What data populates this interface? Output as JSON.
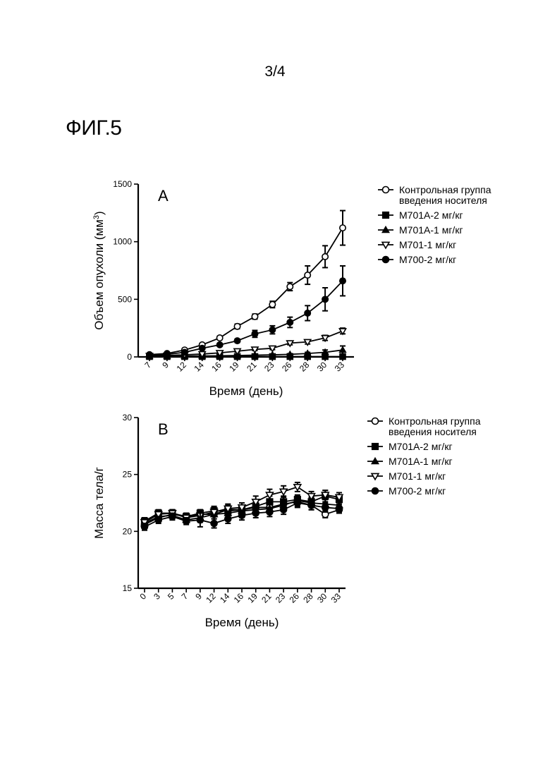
{
  "page_number": "3/4",
  "figure_label": "ФИГ.5",
  "chart_data": [
    {
      "type": "line",
      "panel_label": "A",
      "xlabel": "Время (день)",
      "ylabel": "Объем опухоли (мм",
      "ylabel_sup": "3",
      "ylabel_tail": ")",
      "x": [
        7,
        9,
        12,
        14,
        16,
        19,
        21,
        23,
        26,
        28,
        30,
        33
      ],
      "x_tick_labels": [
        "7",
        "9",
        "12",
        "14",
        "16",
        "19",
        "21",
        "23",
        "26",
        "28",
        "30",
        "33"
      ],
      "ylim": [
        0,
        1500
      ],
      "y_ticks": [
        0,
        500,
        1000,
        1500
      ],
      "y_tick_labels": [
        "0",
        "500",
        "1000",
        "1500"
      ],
      "legend_position": "right",
      "series": [
        {
          "name": "Контрольная группа",
          "name_line2": "введения носителя",
          "marker": "open-circle",
          "values": [
            20,
            30,
            60,
            105,
            165,
            265,
            350,
            455,
            610,
            710,
            870,
            1120
          ],
          "errors": [
            5,
            8,
            10,
            12,
            15,
            20,
            22,
            28,
            35,
            80,
            95,
            150
          ]
        },
        {
          "name": "M701A-2 мг/кг",
          "name_line2": "",
          "marker": "filled-square",
          "values": [
            3,
            3,
            3,
            3,
            3,
            3,
            3,
            3,
            3,
            3,
            3,
            3
          ],
          "errors": [
            1,
            1,
            1,
            1,
            1,
            1,
            1,
            1,
            1,
            1,
            1,
            1
          ]
        },
        {
          "name": "M701A-1 мг/кг",
          "name_line2": "",
          "marker": "filled-triangle",
          "values": [
            5,
            6,
            7,
            8,
            10,
            12,
            15,
            18,
            22,
            30,
            40,
            60
          ],
          "errors": [
            1,
            2,
            2,
            2,
            3,
            3,
            4,
            5,
            6,
            10,
            20,
            35
          ]
        },
        {
          "name": "M701-1 мг/кг",
          "name_line2": "",
          "marker": "open-triangle-down",
          "values": [
            10,
            12,
            18,
            25,
            35,
            50,
            65,
            75,
            120,
            130,
            165,
            225
          ],
          "errors": [
            2,
            3,
            4,
            5,
            6,
            8,
            10,
            12,
            15,
            18,
            22,
            25
          ]
        },
        {
          "name": "M700-2 мг/кг",
          "name_line2": "",
          "marker": "filled-circle",
          "values": [
            15,
            22,
            40,
            75,
            105,
            140,
            200,
            235,
            300,
            380,
            500,
            660
          ],
          "errors": [
            4,
            5,
            8,
            10,
            12,
            15,
            30,
            35,
            45,
            65,
            100,
            130
          ]
        }
      ]
    },
    {
      "type": "line",
      "panel_label": "B",
      "xlabel": "Время (день)",
      "ylabel": "Масса тела/г",
      "x": [
        0,
        3,
        5,
        7,
        9,
        12,
        14,
        16,
        19,
        21,
        23,
        26,
        28,
        30,
        33
      ],
      "x_tick_labels": [
        "0",
        "3",
        "5",
        "7",
        "9",
        "12",
        "14",
        "16",
        "19",
        "21",
        "23",
        "26",
        "28",
        "30",
        "33"
      ],
      "ylim": [
        15,
        30
      ],
      "y_ticks": [
        15,
        20,
        25,
        30
      ],
      "y_tick_labels": [
        "15",
        "20",
        "25",
        "30"
      ],
      "legend_position": "right",
      "series": [
        {
          "name": "Контрольная группа",
          "name_line2": "введения носителя",
          "marker": "open-circle",
          "values": [
            20.6,
            21.2,
            21.5,
            21.3,
            21.5,
            21.5,
            21.9,
            21.9,
            22.1,
            22.1,
            22.4,
            22.6,
            22.3,
            21.5,
            21.9
          ],
          "errors": [
            0.3,
            0.3,
            0.3,
            0.3,
            0.4,
            0.4,
            0.4,
            0.4,
            0.4,
            0.4,
            0.4,
            0.4,
            0.4,
            0.3,
            0.3
          ]
        },
        {
          "name": "M701A-2 мг/кг",
          "name_line2": "",
          "marker": "filled-square",
          "values": [
            20.9,
            21.6,
            21.6,
            21.3,
            21.6,
            21.8,
            21.8,
            21.9,
            22.2,
            22.6,
            22.6,
            22.8,
            22.6,
            23.1,
            22.8
          ],
          "errors": [
            0.3,
            0.3,
            0.3,
            0.3,
            0.3,
            0.4,
            0.4,
            0.4,
            0.4,
            0.5,
            0.5,
            0.4,
            0.4,
            0.5,
            0.4
          ]
        },
        {
          "name": "M701A-1 мг/кг",
          "name_line2": "",
          "marker": "filled-triangle",
          "values": [
            20.7,
            21.3,
            21.4,
            21.0,
            21.2,
            21.5,
            21.6,
            21.8,
            21.9,
            22.0,
            22.3,
            22.7,
            22.5,
            22.4,
            22.3
          ],
          "errors": [
            0.3,
            0.3,
            0.3,
            0.3,
            0.4,
            0.4,
            0.4,
            0.4,
            0.4,
            0.4,
            0.4,
            0.4,
            0.4,
            0.4,
            0.4
          ]
        },
        {
          "name": "M701-1 мг/кг",
          "name_line2": "",
          "marker": "open-triangle-down",
          "values": [
            20.8,
            21.5,
            21.6,
            21.2,
            21.4,
            21.7,
            22.0,
            22.1,
            22.6,
            23.2,
            23.5,
            23.9,
            23.1,
            23.2,
            23.0
          ],
          "errors": [
            0.3,
            0.3,
            0.3,
            0.3,
            0.4,
            0.4,
            0.4,
            0.4,
            0.5,
            0.5,
            0.5,
            0.4,
            0.4,
            0.4,
            0.4
          ]
        },
        {
          "name": "M700-2 мг/кг",
          "name_line2": "",
          "marker": "filled-circle",
          "values": [
            20.4,
            21.0,
            21.3,
            20.9,
            21.0,
            20.7,
            21.1,
            21.4,
            21.6,
            21.7,
            21.9,
            22.5,
            22.3,
            22.1,
            22.0
          ],
          "errors": [
            0.3,
            0.3,
            0.3,
            0.3,
            0.6,
            0.4,
            0.4,
            0.4,
            0.4,
            0.4,
            0.4,
            0.4,
            0.4,
            0.4,
            0.4
          ]
        }
      ]
    }
  ]
}
